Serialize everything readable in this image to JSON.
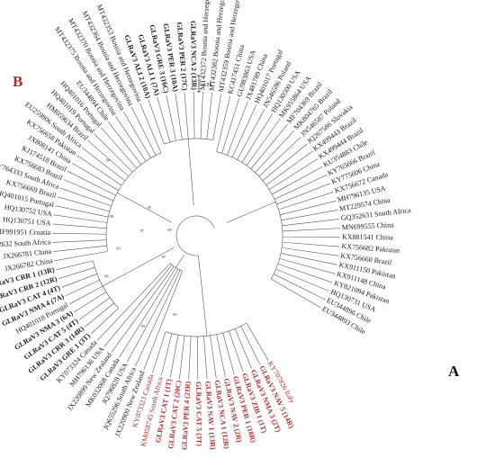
{
  "panel_labels": {
    "a": "A",
    "b": "B"
  },
  "scale_bar": "0.05",
  "colors": {
    "black": "#1a1a1a",
    "red": "#b52a2a",
    "branch": "#555555"
  },
  "bootstrap_labels": [
    "99",
    "99",
    "98",
    "97",
    "99",
    "95",
    "97",
    "99",
    "99",
    "99"
  ],
  "leaves": [
    {
      "label": "KY707826 Italy",
      "color": "red",
      "bold": false
    },
    {
      "label": "GLRaV3 NAV 5 (14R)",
      "color": "red",
      "bold": true
    },
    {
      "label": "GLRaV3 NMA 3 (2T)",
      "color": "red",
      "bold": true
    },
    {
      "label": "GLRaV3 ZIB 1 (1T)",
      "color": "red",
      "bold": true
    },
    {
      "label": "GLRaV3 PER 1 (18R)",
      "color": "red",
      "bold": true
    },
    {
      "label": "GLRaV3 NAV 2 (2R)",
      "color": "red",
      "bold": true
    },
    {
      "label": "GLRaV3 NCA 1 (12R)",
      "color": "red",
      "bold": true
    },
    {
      "label": "GLRaV3 NAV 1 (13R)",
      "color": "red",
      "bold": true
    },
    {
      "label": "GLRaV3 CAT 5 (3T)",
      "color": "red",
      "bold": true
    },
    {
      "label": "GLRaV3 PER 4 (21R)",
      "color": "red",
      "bold": true
    },
    {
      "label": "GLRaV3 CAT 2 (20C)",
      "color": "red",
      "bold": true
    },
    {
      "label": "GLRaV3 CAT 1 (1T)",
      "color": "red",
      "bold": true
    },
    {
      "label": "KM058745 South Africa",
      "color": "red",
      "bold": false
    },
    {
      "label": "KY073323 Canada",
      "color": "red",
      "bold": false
    },
    {
      "label": "JX220900 New Zealand",
      "color": "black",
      "bold": false
    },
    {
      "label": "JQ655296 South Africa",
      "color": "black",
      "bold": false
    },
    {
      "label": "JQ796828 USA",
      "color": "black",
      "bold": false
    },
    {
      "label": "MK032068 Canada",
      "color": "black",
      "bold": false
    },
    {
      "label": "JX220899 New Zealand",
      "color": "black",
      "bold": false
    },
    {
      "label": "MH796136 USA",
      "color": "black",
      "bold": false
    },
    {
      "label": "KY073324 Canada",
      "color": "black",
      "bold": false
    },
    {
      "label": "GLRaV3 GRE 1 (3T)",
      "color": "black",
      "bold": true
    },
    {
      "label": "GLRaV3 CRR 3 (14R)",
      "color": "black",
      "bold": true
    },
    {
      "label": "GLRaV3 CAT 5 (4T)",
      "color": "black",
      "bold": true
    },
    {
      "label": "GLRaV3 NMA 3 (6A)",
      "color": "black",
      "bold": true
    },
    {
      "label": "HQ401018 Portugal",
      "color": "black",
      "bold": false
    },
    {
      "label": "GLRaV3 NMA 4 (7A)",
      "color": "black",
      "bold": true
    },
    {
      "label": "GLRaV3 CAT 4 (4T)",
      "color": "black",
      "bold": true
    },
    {
      "label": "GLRaV3 CRR 2 (12R)",
      "color": "black",
      "bold": true
    },
    {
      "label": "GLRaV3 CRR 1 (13R)",
      "color": "black",
      "bold": true
    },
    {
      "label": "JX266782 China",
      "color": "black",
      "bold": false
    },
    {
      "label": "JX266781 China",
      "color": "black",
      "bold": false
    },
    {
      "label": "GQ352632 South Africa",
      "color": "black",
      "bold": false
    },
    {
      "label": "MF991951 Croatia",
      "color": "black",
      "bold": false
    },
    {
      "label": "HQ130751 USA",
      "color": "black",
      "bold": false
    },
    {
      "label": "HQ130752 USA",
      "color": "black",
      "bold": false
    },
    {
      "label": "HQ401015 Portugal",
      "color": "black",
      "bold": false
    },
    {
      "label": "KX756669 Brazil",
      "color": "black",
      "bold": false
    },
    {
      "label": "KY764333 South Africa",
      "color": "black",
      "bold": false
    },
    {
      "label": "KX756683 Brazil",
      "color": "black",
      "bold": false
    },
    {
      "label": "KJ174518 Brazil",
      "color": "black",
      "bold": false
    },
    {
      "label": "JX808141 China",
      "color": "black",
      "bold": false
    },
    {
      "label": "KX756658 Pakistan",
      "color": "black",
      "bold": false
    },
    {
      "label": "EU259806 South Africa",
      "color": "black",
      "bold": false
    },
    {
      "label": "HM059634 Brazil",
      "color": "black",
      "bold": false
    },
    {
      "label": "HQ401019 Portugal",
      "color": "black",
      "bold": false
    },
    {
      "label": "HQ401016 Portugal",
      "color": "black",
      "bold": false
    },
    {
      "label": "EU344894 Chile",
      "color": "black",
      "bold": false
    },
    {
      "label": "MT432375 Bosnia and Herzegovina",
      "color": "black",
      "bold": false
    },
    {
      "label": "MT432370 Bosnia and Herzegovina",
      "color": "black",
      "bold": false
    },
    {
      "label": "MT432364 Bosnia and Herzegovina",
      "color": "black",
      "bold": false
    },
    {
      "label": "MT432353 Bosnia and Herzegovina",
      "color": "black",
      "bold": false
    },
    {
      "label": "GLRaV3 ALI 2 (10A)",
      "color": "black",
      "bold": true
    },
    {
      "label": "GLRaV3 ALI 1 (7A)",
      "color": "black",
      "bold": true
    },
    {
      "label": "GLRaV3 GRE 3 (16C)",
      "color": "black",
      "bold": true
    },
    {
      "label": "GLRaV3 PER 3 (10A)",
      "color": "black",
      "bold": true
    },
    {
      "label": "GLRaV3 PER 2 (17C)",
      "color": "black",
      "bold": true
    },
    {
      "label": "GLRaV3 NCA 2 (13R)",
      "color": "black",
      "bold": true
    },
    {
      "label": "MT432372 Bosnia and Herzegovina",
      "color": "black",
      "bold": false
    },
    {
      "label": "MT432382 Bosnia and Herzegovina",
      "color": "black",
      "bold": false
    },
    {
      "label": "MT432359 Bosnia and Herzegovina",
      "color": "black",
      "bold": false
    },
    {
      "label": "KC417451 China",
      "color": "black",
      "bold": false
    },
    {
      "label": "GU983863 USA",
      "color": "black",
      "bold": false
    },
    {
      "label": "JX481789 China",
      "color": "black",
      "bold": false
    },
    {
      "label": "HQ401017 Portugal",
      "color": "black",
      "bold": false
    },
    {
      "label": "JN546586 Poland",
      "color": "black",
      "bold": false
    },
    {
      "label": "HQ130500 USA",
      "color": "black",
      "bold": false
    },
    {
      "label": "MK955864 USA",
      "color": "black",
      "bold": false
    },
    {
      "label": "MF704369 Brazil",
      "color": "black",
      "bold": false
    },
    {
      "label": "MK804765 Brazil",
      "color": "black",
      "bold": false
    },
    {
      "label": "JN546587 Poland",
      "color": "black",
      "bold": false
    },
    {
      "label": "JQ267586 Slovakia",
      "color": "black",
      "bold": false
    },
    {
      "label": "KX499443 Brazil",
      "color": "black",
      "bold": false
    },
    {
      "label": "KX499444 Brazil",
      "color": "black",
      "bold": false
    },
    {
      "label": "KU354883 Chile",
      "color": "black",
      "bold": false
    },
    {
      "label": "KY765666 Brazil",
      "color": "black",
      "bold": false
    },
    {
      "label": "KY775606 China",
      "color": "black",
      "bold": false
    },
    {
      "label": "KX756672 Canada",
      "color": "black",
      "bold": false
    },
    {
      "label": "MH796135 USA",
      "color": "black",
      "bold": false
    },
    {
      "label": "MT229574 China",
      "color": "black",
      "bold": false
    },
    {
      "label": "GQ352631 South Africa",
      "color": "black",
      "bold": false
    },
    {
      "label": "MN699555 China",
      "color": "black",
      "bold": false
    },
    {
      "label": "KX881541 China",
      "color": "black",
      "bold": false
    },
    {
      "label": "KX756682 Pakistan",
      "color": "black",
      "bold": false
    },
    {
      "label": "KX756660 Brazil",
      "color": "black",
      "bold": false
    },
    {
      "label": "KX911150 Pakistan",
      "color": "black",
      "bold": false
    },
    {
      "label": "KX911148 China",
      "color": "black",
      "bold": false
    },
    {
      "label": "KY821094 Pakistan",
      "color": "black",
      "bold": false
    },
    {
      "label": "HQ130731 USA",
      "color": "black",
      "bold": false
    },
    {
      "label": "EU344896 Chile",
      "color": "black",
      "bold": false
    },
    {
      "label": "EU344893 Chile",
      "color": "black",
      "bold": false
    }
  ]
}
